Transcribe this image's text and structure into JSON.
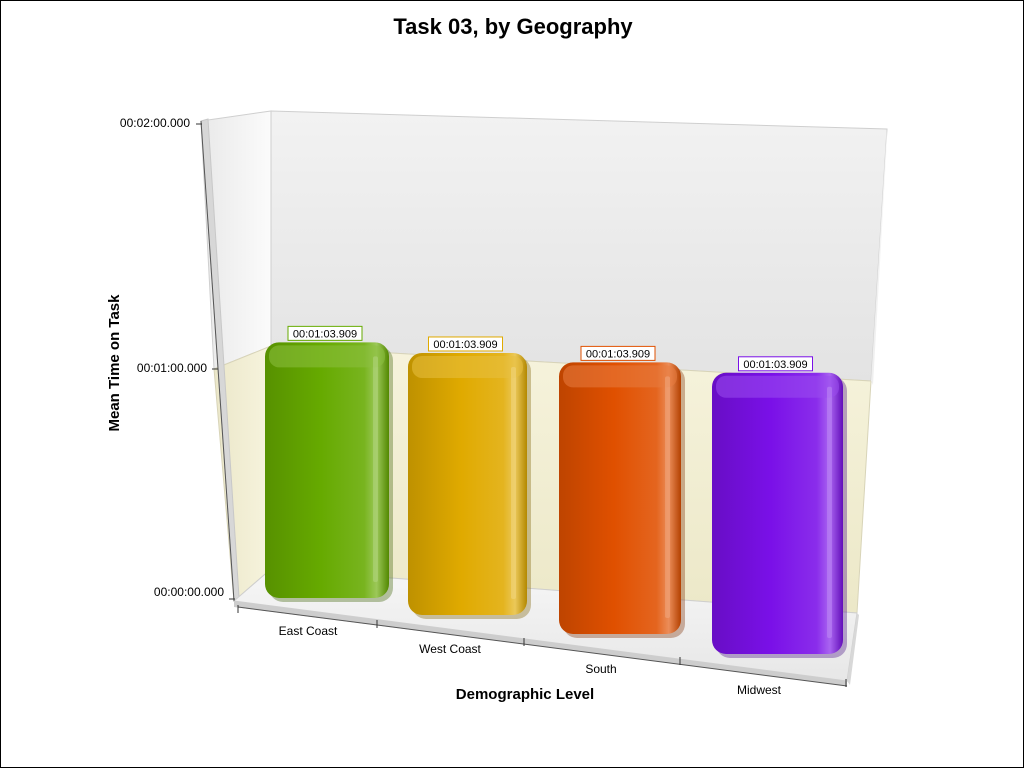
{
  "colors": {
    "east_coast": "#66aa00",
    "west_coast": "#e0aa00",
    "south": "#e05000",
    "midwest": "#7a10e8"
  },
  "chart_data": {
    "type": "bar",
    "title": "Task 03, by Geography",
    "xlabel": "Demographic Level",
    "ylabel": "Mean Time on Task",
    "categories": [
      "East Coast",
      "West Coast",
      "South",
      "Midwest"
    ],
    "values": [
      63.909,
      63.909,
      63.909,
      63.909
    ],
    "data_labels": [
      "00:01:03.909",
      "00:01:03.909",
      "00:01:03.909",
      "00:01:03.909"
    ],
    "ylim": [
      0,
      120
    ],
    "yticks": [
      {
        "value": 0,
        "label": "00:00:00.000"
      },
      {
        "value": 60,
        "label": "00:01:00.000"
      },
      {
        "value": 120,
        "label": "00:02:00.000"
      }
    ],
    "grid": true,
    "legend": "none",
    "style": "3d"
  }
}
